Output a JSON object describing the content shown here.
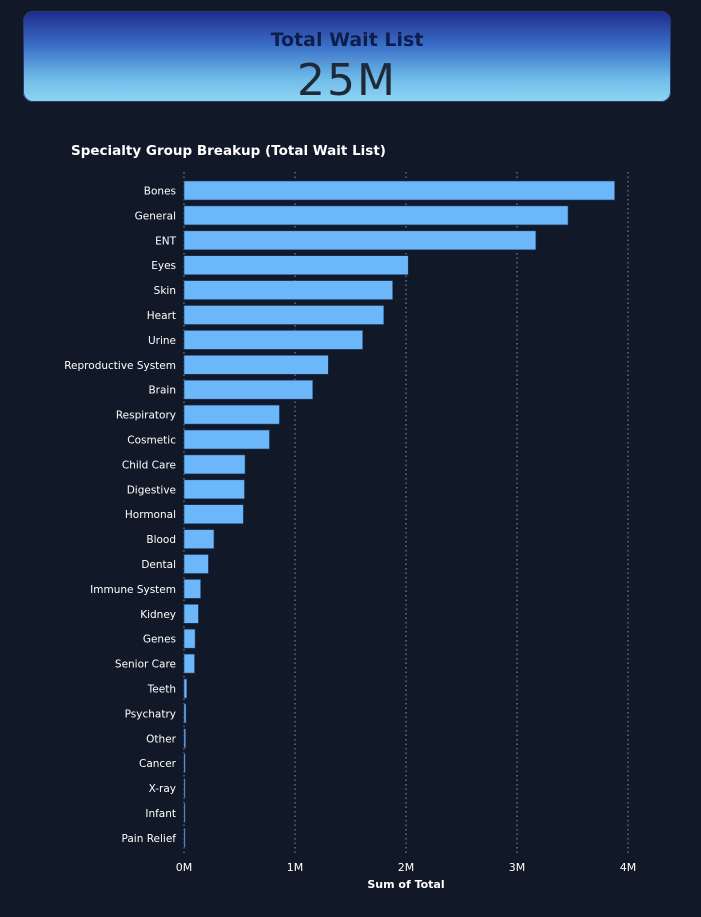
{
  "kpi": {
    "title": "Total Wait List",
    "value": "25M"
  },
  "colors": {
    "background": "#111827",
    "bar": "#6cb6fa",
    "bar_stroke": "#1d3b66",
    "gridline": "#8a93a6"
  },
  "chart_data": {
    "type": "bar",
    "orientation": "horizontal",
    "title": "Specialty Group Breakup (Total Wait List)",
    "xlabel": "Sum of Total",
    "ylabel": "",
    "xlim": [
      0,
      4000000
    ],
    "x_ticks": [
      0,
      1000000,
      2000000,
      3000000,
      4000000
    ],
    "x_tick_labels": [
      "0M",
      "1M",
      "2M",
      "3M",
      "4M"
    ],
    "grid": "vertical-dotted",
    "categories": [
      "Bones",
      "General",
      "ENT",
      "Eyes",
      "Skin",
      "Heart",
      "Urine",
      "Reproductive System",
      "Brain",
      "Respiratory",
      "Cosmetic",
      "Child Care",
      "Digestive",
      "Hormonal",
      "Blood",
      "Dental",
      "Immune System",
      "Kidney",
      "Genes",
      "Senior Care",
      "Teeth",
      "Psychatry",
      "Other",
      "Cancer",
      "X-ray",
      "Infant",
      "Pain Relief"
    ],
    "values": [
      3880000,
      3460000,
      3170000,
      2020000,
      1880000,
      1800000,
      1610000,
      1300000,
      1160000,
      860000,
      770000,
      550000,
      545000,
      535000,
      270000,
      220000,
      150000,
      130000,
      100000,
      95000,
      25000,
      18000,
      15000,
      12000,
      8000,
      6000,
      5000
    ]
  }
}
